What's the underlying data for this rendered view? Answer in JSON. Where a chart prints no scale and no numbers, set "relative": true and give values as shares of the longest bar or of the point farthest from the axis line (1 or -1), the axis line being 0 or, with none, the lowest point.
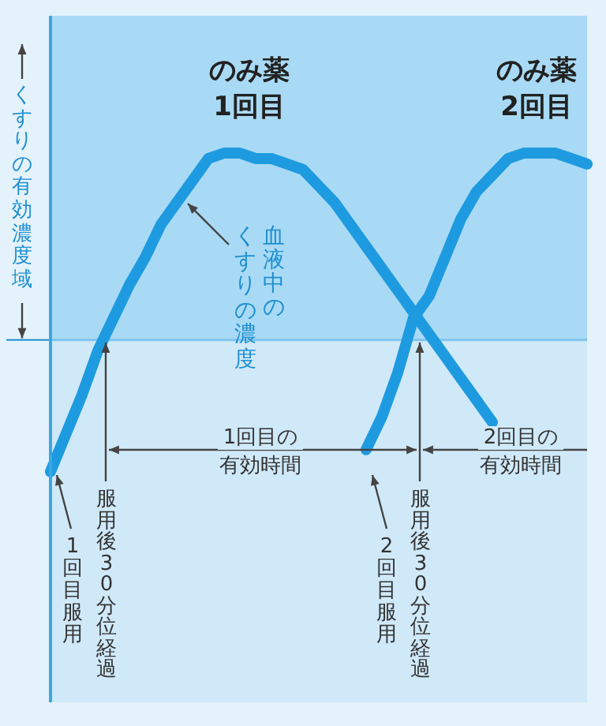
{
  "chart_data": {
    "type": "line",
    "relative": true,
    "marker": "none",
    "categories": [
      null,
      null,
      null,
      null,
      null,
      null,
      null,
      null,
      null,
      null,
      null,
      null,
      null,
      null,
      null,
      null,
      null,
      null,
      null,
      null,
      null,
      null,
      null,
      null,
      null,
      null,
      null,
      null,
      null,
      null,
      null,
      null,
      null,
      null,
      null
    ],
    "series": [
      {
        "color": "#1e9be0",
        "values": [
          0.42,
          0.49,
          0.56,
          0.64,
          0.7,
          0.76,
          0.81,
          0.87,
          0.91,
          0.95,
          0.99,
          1,
          1,
          0.99,
          0.99,
          0.98,
          0.97,
          0.94,
          0.91,
          0.87,
          0.83,
          0.79,
          0.75,
          0.71,
          0.67,
          0.63,
          0.59,
          0.55,
          0.51,
          null,
          null,
          null,
          null,
          null,
          null
        ]
      },
      {
        "color": "#1e9be0",
        "values": [
          null,
          null,
          null,
          null,
          null,
          null,
          null,
          null,
          null,
          null,
          null,
          null,
          null,
          null,
          null,
          null,
          null,
          null,
          null,
          null,
          0.46,
          0.52,
          0.6,
          0.7,
          0.74,
          0.81,
          0.88,
          0.93,
          0.96,
          0.99,
          1,
          1,
          1,
          0.99,
          0.98
        ]
      }
    ],
    "ref_lines": [
      {
        "axis": "y",
        "value": 0.66,
        "label": "くすりの有効濃度域",
        "color": "#7fc4ec"
      }
    ],
    "annotations": [
      "のみ薬",
      "1回目",
      "のみ薬",
      "2回目",
      "血液中の",
      "くすりの濃度",
      "1回目服用",
      "服用後30分位経過",
      "1回目の",
      "有効時間",
      "2回目服用",
      "服用後30分位経過",
      "2回目の",
      "有効時間"
    ]
  }
}
